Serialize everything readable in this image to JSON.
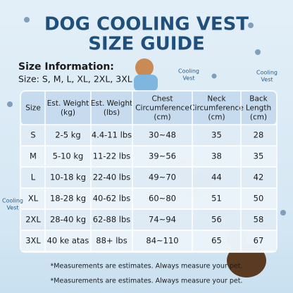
{
  "header": {
    "title_lines": [
      "DOG COOLING VEST",
      "SIZE GUIDE"
    ]
  },
  "size_info": {
    "heading": "Size Information:",
    "sizes": "Size: S, M, L, XL, 2XL, 3XL"
  },
  "table": {
    "headers": [
      [
        "Size"
      ],
      [
        "Est. Weight",
        "(kg)"
      ],
      [
        "Est. Weight",
        "(lbs)"
      ],
      [
        "Chest",
        "Circumference",
        "(cm)"
      ],
      [
        "Neck",
        "Circumference",
        "(cm)"
      ],
      [
        "Back",
        "Length",
        "(cm)"
      ]
    ],
    "rows": [
      [
        "S",
        "2-5 kg",
        "4.4-11 lbs",
        "30~48",
        "35",
        "28"
      ],
      [
        "M",
        "5-10 kg",
        "11-22 lbs",
        "39~56",
        "38",
        "35"
      ],
      [
        "L",
        "10-18 kg",
        "22-40 lbs",
        "49~70",
        "44",
        "42"
      ],
      [
        "XL",
        "18-28 kg",
        "40-62 lbs",
        "60~80",
        "51",
        "50"
      ],
      [
        "2XL",
        "28-40 kg",
        "62-88 lbs",
        "74~94",
        "56",
        "58"
      ],
      [
        "3XL",
        "40 ke atas",
        "88+ lbs",
        "84~110",
        "65",
        "67"
      ]
    ]
  },
  "callouts": [
    [
      "Cooling",
      "Vest"
    ],
    [
      "Cooling",
      "Vest"
    ],
    [
      "Cooling",
      "Vest"
    ]
  ],
  "footnotes": [
    "*Measurements are estimates. Always measure your pet.",
    "*Measurements are estimates. Always measure your pet."
  ]
}
